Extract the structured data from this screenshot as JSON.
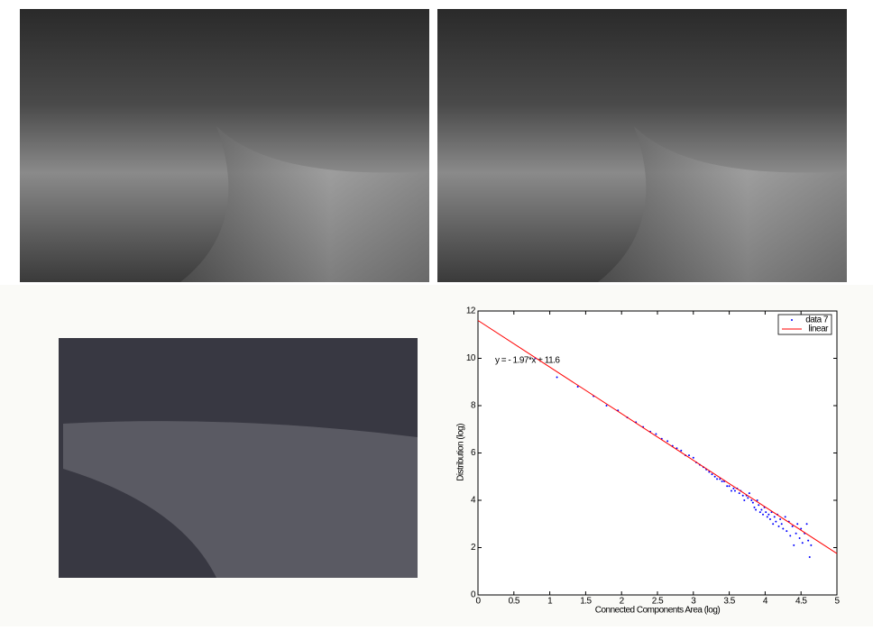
{
  "chart_data": {
    "type": "scatter",
    "xlabel": "Connected Components Area (log)",
    "ylabel": "Distribution (log)",
    "annotation": "y = - 1.97*x + 11.6",
    "xlim": [
      0,
      5
    ],
    "xticks": [
      0,
      0.5,
      1,
      1.5,
      2,
      2.5,
      3,
      3.5,
      4,
      4.5,
      5
    ],
    "ylim": [
      0,
      12
    ],
    "yticks": [
      0,
      2,
      4,
      6,
      8,
      10,
      12
    ],
    "legend": "upper right",
    "series": [
      {
        "name": "data 7",
        "color": "#0000ff",
        "style": "points",
        "x": [
          0.8,
          1.1,
          1.39,
          1.61,
          1.79,
          1.95,
          2.08,
          2.2,
          2.3,
          2.4,
          2.48,
          2.56,
          2.64,
          2.71,
          2.77,
          2.83,
          2.89,
          2.94,
          3.0,
          3.04,
          3.09,
          3.14,
          3.18,
          3.22,
          3.26,
          3.3,
          3.33,
          3.37,
          3.4,
          3.43,
          3.47,
          3.5,
          3.53,
          3.56,
          3.58,
          3.61,
          3.64,
          3.66,
          3.69,
          3.71,
          3.74,
          3.76,
          3.78,
          3.81,
          3.83,
          3.85,
          3.87,
          3.89,
          3.91,
          3.93,
          3.95,
          3.97,
          3.99,
          4.01,
          4.03,
          4.05,
          4.07,
          4.09,
          4.11,
          4.13,
          4.15,
          4.17,
          4.19,
          4.21,
          4.23,
          4.25,
          4.28,
          4.3,
          4.33,
          4.35,
          4.38,
          4.4,
          4.43,
          4.45,
          4.48,
          4.5,
          4.52,
          4.55,
          4.58,
          4.6,
          4.62,
          4.64
        ],
        "values": [
          10.0,
          9.2,
          8.8,
          8.4,
          8.0,
          7.8,
          7.5,
          7.3,
          7.1,
          6.9,
          6.8,
          6.6,
          6.5,
          6.3,
          6.2,
          6.1,
          5.9,
          5.9,
          5.8,
          5.6,
          5.5,
          5.4,
          5.3,
          5.2,
          5.1,
          5.0,
          4.9,
          4.9,
          4.8,
          4.8,
          4.6,
          4.6,
          4.4,
          4.5,
          4.4,
          4.5,
          4.3,
          4.4,
          4.2,
          4.0,
          4.2,
          4.1,
          4.3,
          4.0,
          3.9,
          3.7,
          3.6,
          4.0,
          3.8,
          3.5,
          3.6,
          3.4,
          3.7,
          3.5,
          3.3,
          3.4,
          3.2,
          3.5,
          3.0,
          3.3,
          3.1,
          3.4,
          2.9,
          3.2,
          3.0,
          2.8,
          3.3,
          2.7,
          3.1,
          2.5,
          2.9,
          2.1,
          2.6,
          3.0,
          2.4,
          2.8,
          2.2,
          2.6,
          3.0,
          2.3,
          1.6,
          2.1
        ]
      },
      {
        "name": "linear",
        "color": "#ff0000",
        "style": "line",
        "x": [
          0,
          5
        ],
        "values": [
          11.6,
          1.75
        ]
      }
    ]
  }
}
